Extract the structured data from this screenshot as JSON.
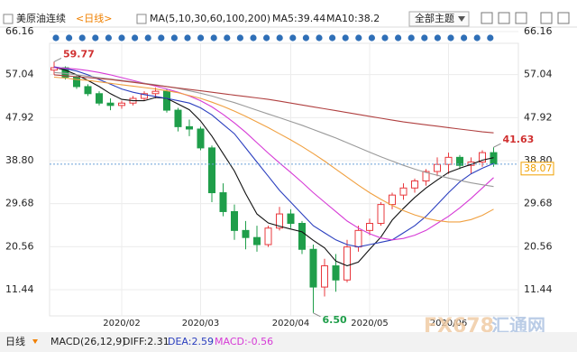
{
  "header": {
    "symbol": "美原油连续",
    "period": "<日线>",
    "ma_label": "MA(5,10,30,60,100,200)",
    "ma5": "MA5:39.44",
    "ma10": "MA10:38.2",
    "theme_menu": "全部主题"
  },
  "chart_data": {
    "type": "candlestick",
    "categories": [
      null,
      null,
      null,
      null,
      null,
      null,
      "2020/02",
      null,
      null,
      null,
      null,
      null,
      null,
      "2020/03",
      null,
      null,
      null,
      null,
      null,
      null,
      null,
      "2020/04",
      null,
      null,
      null,
      null,
      null,
      null,
      "2020/05",
      null,
      null,
      null,
      null,
      null,
      null,
      "2020/06",
      null,
      null,
      null,
      null
    ],
    "open": [
      58,
      58.5,
      56.5,
      54.5,
      53,
      51,
      50.5,
      51,
      52,
      53,
      53.5,
      49.5,
      46,
      45.5,
      41.5,
      32,
      28,
      24,
      22.5,
      21,
      24.5,
      27.5,
      25.5,
      20,
      12,
      16.5,
      13.5,
      20.5,
      24,
      25.5,
      29.5,
      31.5,
      33,
      34.5,
      36.5,
      38,
      39.5,
      37.8,
      38.5,
      40.5
    ],
    "high": [
      59.77,
      58.8,
      57,
      55,
      53.5,
      52,
      51.5,
      52.5,
      53.5,
      54.3,
      54,
      50,
      47.5,
      46,
      42,
      34,
      29.5,
      26,
      25,
      25,
      29,
      28.5,
      26,
      21,
      18,
      19,
      22,
      25,
      26.5,
      30,
      32,
      34,
      35,
      37,
      39.5,
      40.5,
      40,
      39.5,
      41,
      41.63
    ],
    "low": [
      57,
      56,
      54,
      52.5,
      50.5,
      49.5,
      49.8,
      50.5,
      51.5,
      52,
      49,
      45,
      44,
      41,
      30,
      27,
      22,
      20,
      19.5,
      20.5,
      24,
      24.5,
      19,
      6.5,
      10,
      11,
      13,
      19.5,
      23,
      25,
      28.5,
      30.5,
      32,
      33.5,
      35.5,
      36,
      37,
      36,
      37.5,
      37.5
    ],
    "close": [
      58.5,
      56.5,
      54.5,
      53,
      51,
      50.5,
      51,
      52,
      53,
      53.5,
      49.5,
      46,
      45.5,
      41.5,
      32,
      28,
      24,
      22.5,
      21,
      24.5,
      27.5,
      25.5,
      20,
      12,
      16.5,
      13.5,
      20.5,
      24,
      25.5,
      29.5,
      31.5,
      33,
      34.5,
      36.5,
      38,
      39.5,
      37.8,
      38.5,
      40.5,
      38.07
    ],
    "up_color": "#e8383d",
    "down_color": "#1f9e4a",
    "series": [
      {
        "color": "#111111",
        "values": [
          58.6,
          58,
          57,
          55.8,
          54.5,
          53,
          51.8,
          51.5,
          51.5,
          52.2,
          52,
          50.8,
          49.6,
          47.2,
          44,
          40.3,
          36.6,
          31.8,
          27.5,
          25.6,
          24.9,
          24.3,
          23.7,
          21.9,
          20.3,
          17.5,
          16.5,
          17.3,
          20,
          22.6,
          26.2,
          28.7,
          31,
          33,
          34.7,
          36.3,
          37.2,
          38,
          38.9,
          39.44
        ]
      },
      {
        "color": "#2b3fbf",
        "values": [
          58.7,
          58.3,
          57.8,
          57,
          56,
          55,
          54,
          53.3,
          52.8,
          52.4,
          52,
          51.5,
          51,
          50,
          48.5,
          46.5,
          44.5,
          41.5,
          38.5,
          35.5,
          32.5,
          30,
          27.5,
          25,
          23.5,
          22,
          21,
          20.5,
          21,
          21.5,
          22,
          23.5,
          25,
          27,
          29.5,
          32,
          34.3,
          36,
          37.2,
          38.2
        ]
      },
      {
        "color": "#d63ad6",
        "values": [
          58.5,
          58.4,
          58.2,
          57.9,
          57.5,
          57,
          56.4,
          55.8,
          55.2,
          54.6,
          54,
          53.3,
          52.5,
          51.5,
          50.2,
          48.6,
          46.8,
          44.8,
          42.6,
          40.4,
          38.3,
          36.3,
          34.2,
          32,
          30,
          28,
          26,
          24.5,
          23.3,
          22.4,
          22,
          22.3,
          23,
          24,
          25.5,
          27,
          28.8,
          30.8,
          33,
          35.2
        ]
      },
      {
        "color": "#f0a040",
        "values": [
          56.5,
          56.3,
          56,
          55.8,
          55.5,
          55.2,
          54.9,
          54.6,
          54.3,
          54,
          53.6,
          53.2,
          52.6,
          52,
          51.2,
          50.3,
          49.3,
          48.2,
          47,
          45.8,
          44.5,
          43.2,
          41.8,
          40.3,
          38.7,
          37,
          35.3,
          33.6,
          32,
          30.6,
          29.3,
          28.2,
          27.3,
          26.6,
          26.1,
          25.8,
          25.8,
          26.3,
          27.2,
          28.5
        ]
      },
      {
        "color": "#9a9a9a",
        "values": [
          57.5,
          57.3,
          57,
          56.7,
          56.4,
          56.1,
          55.8,
          55.5,
          55.2,
          54.9,
          54.5,
          54.1,
          53.6,
          53.1,
          52.5,
          51.8,
          51.1,
          50.3,
          49.5,
          48.7,
          47.9,
          47.1,
          46.3,
          45.4,
          44.5,
          43.6,
          42.6,
          41.6,
          40.6,
          39.6,
          38.7,
          37.8,
          37,
          36.3,
          35.7,
          35.1,
          34.6,
          34.1,
          33.7,
          33.3
        ]
      },
      {
        "color": "#b04040",
        "values": [
          57,
          56.8,
          56.6,
          56.4,
          56.2,
          56,
          55.7,
          55.4,
          55.1,
          54.8,
          54.5,
          54.2,
          53.9,
          53.6,
          53.3,
          53,
          52.7,
          52.4,
          52.1,
          51.8,
          51.4,
          51,
          50.6,
          50.2,
          49.8,
          49.4,
          49,
          48.6,
          48.2,
          47.8,
          47.4,
          47,
          46.7,
          46.4,
          46.1,
          45.8,
          45.5,
          45.2,
          44.9,
          44.7
        ]
      }
    ],
    "ylim": [
      5.89,
      67.5
    ],
    "yticks": [
      66.16,
      57.04,
      47.92,
      {
        "value": 38.8,
        "label": "38.80"
      },
      29.68,
      20.56,
      11.44
    ],
    "extremes": [
      {
        "value": 59.77,
        "label": "59.77",
        "color": "#d03030"
      },
      {
        "value": 6.5,
        "label": "6.50",
        "color": "#1f9e4a"
      },
      {
        "value": 41.63,
        "label": "41.63",
        "color": "#d03030"
      }
    ],
    "last_price": 38.07,
    "last_price_color": "#f0a000",
    "grid": true
  },
  "footer": {
    "period": "日线",
    "macd": "MACD(26,12,9)",
    "diff": "DIFF:2.31",
    "dea": "DEA:2.59",
    "macd_value": "MACD:-0.56"
  },
  "watermark": {
    "brand": "FX678",
    "name": "汇通网"
  }
}
